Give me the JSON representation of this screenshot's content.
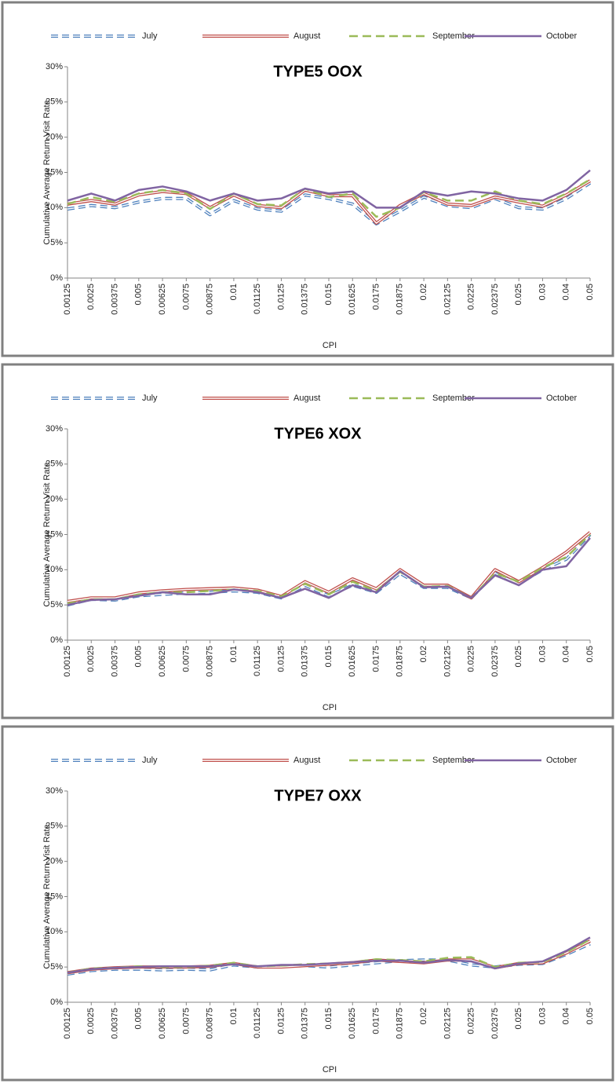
{
  "chart_data": [
    {
      "type": "line",
      "title": "TYPE5 OOX",
      "x_label": "CPI",
      "y_label": "Cumulative  Average Return Visit Rate",
      "categories": [
        "0.00125",
        "0.0025",
        "0.00375",
        "0.005",
        "0.00625",
        "0.0075",
        "0.00875",
        "0.01",
        "0.01125",
        "0.0125",
        "0.01375",
        "0.015",
        "0.01625",
        "0.0175",
        "0.01875",
        "0.02",
        "0.02125",
        "0.0225",
        "0.02375",
        "0.025",
        "0.03",
        "0.04",
        "0.05"
      ],
      "ylim": [
        0,
        30
      ],
      "yticks": [
        {
          "value": 0,
          "label": "0%"
        },
        {
          "value": 5,
          "label": "5%"
        },
        {
          "value": 10,
          "label": "10%"
        },
        {
          "value": 15,
          "label": "15%"
        },
        {
          "value": 20,
          "label": "20%"
        },
        {
          "value": 25,
          "label": "25%"
        },
        {
          "value": 30,
          "label": "30%"
        }
      ],
      "series": [
        {
          "name": "July",
          "color": "#4f81bd",
          "values": [
            9.8,
            10.3,
            10,
            10.8,
            11.3,
            11.3,
            9,
            11,
            9.8,
            9.5,
            11.8,
            11.3,
            10.5,
            7.7,
            9.5,
            11.5,
            10.3,
            10,
            11.3,
            10,
            9.8,
            11.3,
            13.5
          ]
        },
        {
          "name": "August",
          "color": "#c0504d",
          "values": [
            10.5,
            11,
            10.5,
            11.8,
            12.3,
            12,
            10,
            11.8,
            10.3,
            10,
            12.5,
            11.7,
            11.7,
            7.8,
            10.3,
            12,
            10.5,
            10.3,
            11.5,
            10.8,
            10.2,
            11.8,
            13.8
          ]
        },
        {
          "name": "September",
          "color": "#9bbb59",
          "values": [
            10.5,
            11.5,
            10.8,
            12,
            12.5,
            12,
            9.8,
            12,
            10.5,
            10.3,
            12.7,
            11.5,
            12,
            8.7,
            10,
            12.2,
            11,
            11,
            12.3,
            11,
            10.5,
            12,
            14
          ]
        },
        {
          "name": "October",
          "color": "#8064a2",
          "values": [
            11,
            12,
            11,
            12.5,
            13,
            12.3,
            11,
            12,
            11,
            11.3,
            12.7,
            12,
            12.3,
            10,
            10,
            12.3,
            11.7,
            12.3,
            12,
            11.3,
            11,
            12.5,
            15.3
          ]
        }
      ]
    },
    {
      "type": "line",
      "title": "TYPE6 XOX",
      "x_label": "CPI",
      "y_label": "Cumulative  Average Return Visit Rate",
      "categories": [
        "0.00125",
        "0.0025",
        "0.00375",
        "0.005",
        "0.00625",
        "0.0075",
        "0.00875",
        "0.01",
        "0.01125",
        "0.0125",
        "0.01375",
        "0.015",
        "0.01625",
        "0.0175",
        "0.01875",
        "0.02",
        "0.02125",
        "0.0225",
        "0.02375",
        "0.025",
        "0.03",
        "0.04",
        "0.05"
      ],
      "ylim": [
        0,
        30
      ],
      "yticks": [
        {
          "value": 0,
          "label": "0%"
        },
        {
          "value": 5,
          "label": "5%"
        },
        {
          "value": 10,
          "label": "10%"
        },
        {
          "value": 15,
          "label": "15%"
        },
        {
          "value": 20,
          "label": "20%"
        },
        {
          "value": 25,
          "label": "25%"
        },
        {
          "value": 30,
          "label": "30%"
        }
      ],
      "series": [
        {
          "name": "July",
          "color": "#4f81bd",
          "values": [
            5,
            5.8,
            5.7,
            6.3,
            6.5,
            6.7,
            6.8,
            7,
            6.8,
            6,
            7.8,
            6.3,
            7.8,
            6.8,
            9.5,
            7.5,
            7.5,
            6,
            9.5,
            8,
            10,
            11.5,
            15
          ]
        },
        {
          "name": "August",
          "color": "#c0504d",
          "values": [
            5.5,
            6,
            6,
            6.7,
            7,
            7.2,
            7.3,
            7.4,
            7.1,
            6.2,
            8.3,
            6.8,
            8.7,
            7.3,
            10,
            7.8,
            7.8,
            6,
            10,
            8.3,
            10.3,
            12.5,
            15.3
          ]
        },
        {
          "name": "September",
          "color": "#9bbb59",
          "values": [
            5.2,
            5.8,
            5.8,
            6.5,
            6.8,
            6.8,
            7,
            7.2,
            7,
            6.2,
            8,
            6.5,
            8.3,
            7,
            9.7,
            7.6,
            7.7,
            6,
            9.5,
            8.3,
            10.3,
            11.8,
            15
          ]
        },
        {
          "name": "October",
          "color": "#8064a2",
          "values": [
            5,
            5.7,
            5.8,
            6.3,
            6.8,
            6.5,
            6.5,
            7.2,
            6.8,
            6,
            7.3,
            6,
            7.8,
            6.8,
            9.8,
            7.5,
            7.6,
            6,
            9.2,
            7.8,
            10,
            10.5,
            14.5
          ]
        }
      ]
    },
    {
      "type": "line",
      "title": "TYPE7 OXX",
      "x_label": "CPI",
      "y_label": "Cumulative  Average Return Visit Rate",
      "categories": [
        "0.00125",
        "0.0025",
        "0.00375",
        "0.005",
        "0.00625",
        "0.0075",
        "0.00875",
        "0.01",
        "0.01125",
        "0.0125",
        "0.01375",
        "0.015",
        "0.01625",
        "0.0175",
        "0.01875",
        "0.02",
        "0.02125",
        "0.0225",
        "0.02375",
        "0.025",
        "0.03",
        "0.04",
        "0.05"
      ],
      "ylim": [
        0,
        30
      ],
      "yticks": [
        {
          "value": 0,
          "label": "0%"
        },
        {
          "value": 5,
          "label": "5%"
        },
        {
          "value": 10,
          "label": "10%"
        },
        {
          "value": 15,
          "label": "15%"
        },
        {
          "value": 20,
          "label": "20%"
        },
        {
          "value": 25,
          "label": "25%"
        },
        {
          "value": 30,
          "label": "30%"
        }
      ],
      "series": [
        {
          "name": "July",
          "color": "#4f81bd",
          "values": [
            4,
            4.5,
            4.7,
            4.7,
            4.6,
            4.7,
            4.6,
            5.3,
            5,
            5.1,
            5.2,
            5,
            5.3,
            5.6,
            5.9,
            6,
            6,
            5.3,
            5,
            5.4,
            5.5,
            6.8,
            8.3
          ]
        },
        {
          "name": "August",
          "color": "#c0504d",
          "values": [
            4.2,
            4.7,
            4.9,
            5,
            5,
            5,
            5.1,
            5.5,
            5,
            5,
            5.2,
            5.4,
            5.6,
            6,
            5.8,
            5.6,
            6,
            6,
            4.9,
            5.5,
            5.6,
            7,
            8.7
          ]
        },
        {
          "name": "September",
          "color": "#9bbb59",
          "values": [
            4.2,
            4.8,
            4.9,
            5.1,
            5,
            5,
            5.2,
            5.6,
            5.1,
            5.2,
            5.4,
            5.5,
            5.7,
            6.1,
            6,
            5.8,
            6.3,
            6.4,
            5,
            5.6,
            5.7,
            7.1,
            8.9
          ]
        },
        {
          "name": "October",
          "color": "#8064a2",
          "values": [
            4.2,
            4.7,
            4.9,
            5,
            5.1,
            5.1,
            5.1,
            5.4,
            5.1,
            5.3,
            5.3,
            5.5,
            5.7,
            5.9,
            5.9,
            5.6,
            6,
            5.8,
            4.8,
            5.5,
            5.8,
            7.3,
            9.2
          ]
        }
      ]
    }
  ]
}
